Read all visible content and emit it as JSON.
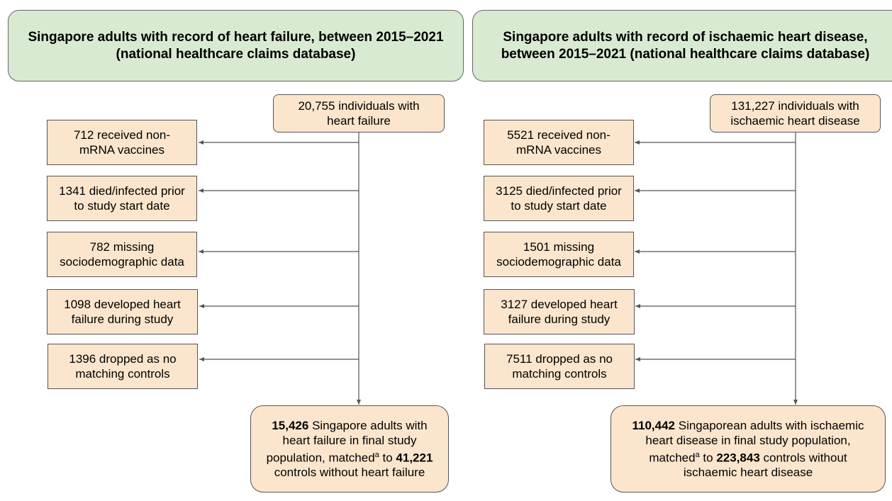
{
  "left": {
    "header": "Singapore adults with record of heart failure, between 2015–2021\n(national healthcare claims database)",
    "start": "20,755 individuals with\nheart failure",
    "exclusions": [
      "712 received non-\nmRNA vaccines",
      "1341 died/infected prior\nto study start date",
      "782 missing\nsociodemographic data",
      "1098 developed heart\nfailure during study",
      "1396 dropped as no\nmatching controls"
    ],
    "final": {
      "count": "15,426",
      "line1": " Singapore adults with",
      "line2": "heart failure in final study",
      "line3_pre": "population, matched",
      "sup": "a",
      "line3_mid": " to ",
      "controls": "41,221",
      "line4": "controls without heart failure"
    }
  },
  "right": {
    "header": "Singapore adults with record of ischaemic heart disease,\nbetween 2015–2021 (national healthcare claims database)",
    "start": "131,227 individuals with\nischaemic heart disease",
    "exclusions": [
      "5521 received non-\nmRNA vaccines",
      "3125 died/infected prior\nto study start date",
      "1501 missing\nsociodemographic data",
      "3127 developed heart\nfailure during study",
      "7511 dropped as no\nmatching controls"
    ],
    "final": {
      "count": "110,442",
      "line1": " Singaporean adults with ischaemic",
      "line2": "heart disease in final study population,",
      "line3_pre": "matched",
      "sup": "a",
      "line3_mid": " to ",
      "controls": "223,843",
      "line3_post": " controls without",
      "line4": "ischaemic heart disease"
    }
  },
  "colors": {
    "header_fill": "#d9ead3",
    "box_fill": "#fce5cd",
    "line": "#555555"
  }
}
